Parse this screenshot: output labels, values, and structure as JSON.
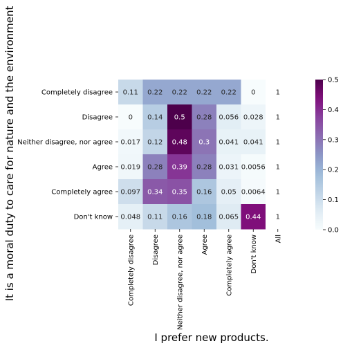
{
  "chart_data": {
    "type": "heatmap",
    "title": "",
    "xlabel": "I prefer new products.",
    "ylabel": "It is a moral duty to care for nature and the environment",
    "x_categories": [
      "Completely disagree",
      "Disagree",
      "Neither disagree, nor agree",
      "Agree",
      "Completely agree",
      "Don't know",
      "All"
    ],
    "y_categories": [
      "Completely disagree",
      "Disagree",
      "Neither disagree, nor agree",
      "Agree",
      "Completely agree",
      "Don't know"
    ],
    "values": [
      [
        0.11,
        0.22,
        0.22,
        0.22,
        0.22,
        0,
        1
      ],
      [
        0,
        0.14,
        0.5,
        0.28,
        0.056,
        0.028,
        1
      ],
      [
        0.017,
        0.12,
        0.48,
        0.3,
        0.041,
        0.041,
        1
      ],
      [
        0.019,
        0.28,
        0.39,
        0.28,
        0.031,
        0.0056,
        1
      ],
      [
        0.097,
        0.34,
        0.35,
        0.16,
        0.05,
        0.0064,
        1
      ],
      [
        0.048,
        0.11,
        0.16,
        0.18,
        0.065,
        0.44,
        1
      ]
    ],
    "value_labels": [
      [
        "0.11",
        "0.22",
        "0.22",
        "0.22",
        "0.22",
        "0",
        "1"
      ],
      [
        "0",
        "0.14",
        "0.5",
        "0.28",
        "0.056",
        "0.028",
        "1"
      ],
      [
        "0.017",
        "0.12",
        "0.48",
        "0.3",
        "0.041",
        "0.041",
        "1"
      ],
      [
        "0.019",
        "0.28",
        "0.39",
        "0.28",
        "0.031",
        "0.0056",
        "1"
      ],
      [
        "0.097",
        "0.34",
        "0.35",
        "0.16",
        "0.05",
        "0.0064",
        "1"
      ],
      [
        "0.048",
        "0.11",
        "0.16",
        "0.18",
        "0.065",
        "0.44",
        "1"
      ]
    ],
    "colorscale": "BuPu",
    "vmin": 0,
    "vmax": 0.5,
    "colorbar_ticks": [
      "0.0",
      "0.1",
      "0.2",
      "0.3",
      "0.4",
      "0.5"
    ],
    "grid": false,
    "legend": "colorbar-right"
  }
}
